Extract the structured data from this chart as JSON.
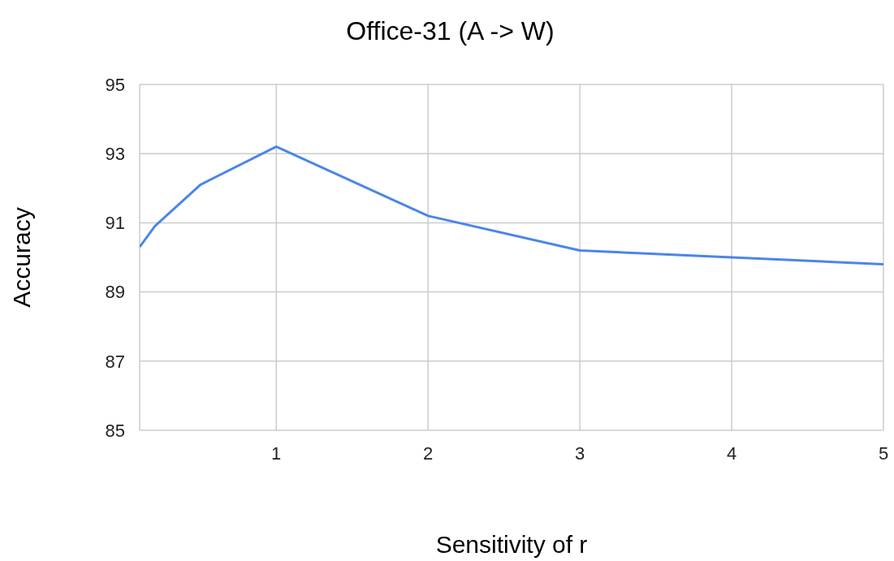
{
  "chart_data": {
    "type": "line",
    "title": "Office-31 (A -> W)",
    "xlabel": "Sensitivity of r",
    "ylabel": "Accuracy",
    "x": [
      0.1,
      0.2,
      0.5,
      1,
      2,
      3,
      4,
      5
    ],
    "series": [
      {
        "color": "#4a86e8",
        "values": [
          90.3,
          90.9,
          92.1,
          93.2,
          91.2,
          90.2,
          90.0,
          89.8
        ]
      }
    ],
    "xlim": [
      0.1,
      5
    ],
    "xticks": [
      1,
      2,
      3,
      4,
      5
    ],
    "ylim": [
      85,
      95
    ],
    "yticks": [
      85,
      87,
      89,
      91,
      93,
      95
    ],
    "grid": true,
    "marker": "none",
    "line_style": "solid",
    "legend": false
  }
}
